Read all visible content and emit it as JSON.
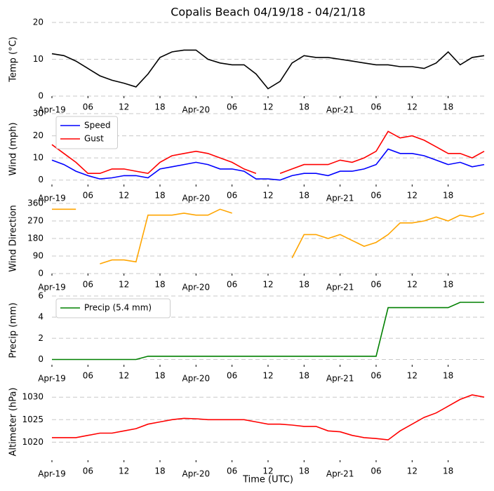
{
  "chart_data": [
    {
      "type": "line",
      "title": "Copalis Beach 04/19/18 - 04/21/18",
      "ylabel": "Temp (°C)",
      "color": "#000000",
      "x": [
        0,
        2,
        4,
        6,
        8,
        10,
        12,
        14,
        16,
        18,
        20,
        22,
        24,
        26,
        28,
        30,
        32,
        34,
        36,
        38,
        40,
        42,
        44,
        46,
        48,
        50,
        52,
        54,
        56,
        58,
        60,
        62,
        64,
        66,
        68,
        70,
        72
      ],
      "values": [
        11.5,
        11,
        9.5,
        7.5,
        5.5,
        4.3,
        3.5,
        2.5,
        6,
        10.5,
        12,
        12.5,
        12.5,
        10,
        9,
        8.5,
        8.5,
        6,
        2,
        4,
        9,
        11,
        10.5,
        10.5,
        10,
        9.5,
        9,
        8.5,
        8.5,
        8,
        8,
        7.5,
        9,
        12,
        8.5,
        10.5,
        11
      ],
      "xlim": [
        0,
        72
      ],
      "xticks": [
        {
          "value": 0,
          "label": "Apr-19"
        },
        {
          "value": 6,
          "label": "06"
        },
        {
          "value": 12,
          "label": "12"
        },
        {
          "value": 18,
          "label": "18"
        },
        {
          "value": 24,
          "label": "Apr-20"
        },
        {
          "value": 30,
          "label": "06"
        },
        {
          "value": 36,
          "label": "12"
        },
        {
          "value": 42,
          "label": "18"
        },
        {
          "value": 48,
          "label": "Apr-21"
        },
        {
          "value": 54,
          "label": "06"
        },
        {
          "value": 60,
          "label": "12"
        },
        {
          "value": 66,
          "label": "18"
        }
      ],
      "ylim": [
        0,
        20
      ],
      "yticks": [
        0,
        10,
        20
      ],
      "grid": true
    },
    {
      "type": "line",
      "ylabel": "Wind (mph)",
      "legend": "upper left",
      "x": [
        0,
        2,
        4,
        6,
        8,
        10,
        12,
        14,
        16,
        18,
        20,
        22,
        24,
        26,
        28,
        30,
        32,
        34,
        36,
        38,
        40,
        42,
        44,
        46,
        48,
        50,
        52,
        54,
        56,
        58,
        60,
        62,
        64,
        66,
        68,
        70,
        72
      ],
      "series": [
        {
          "name": "Speed",
          "color": "#0000ff",
          "values": [
            9,
            7,
            4,
            2,
            0.5,
            1,
            2,
            2,
            1,
            5,
            6,
            7,
            8,
            7,
            5,
            5,
            4,
            0.5,
            0.5,
            0,
            2,
            3,
            3,
            2,
            4,
            4,
            5,
            7,
            14,
            12,
            12,
            11,
            9,
            7,
            8,
            6,
            7
          ]
        },
        {
          "name": "Gust",
          "color": "#ff0000",
          "values": [
            16,
            12,
            8,
            3,
            3,
            5,
            5,
            4,
            3,
            8,
            11,
            12,
            13,
            12,
            10,
            8,
            5,
            3,
            null,
            3,
            5,
            7,
            7,
            7,
            9,
            8,
            10,
            13,
            22,
            19,
            20,
            18,
            15,
            12,
            12,
            10,
            13
          ]
        }
      ],
      "xlim": [
        0,
        72
      ],
      "xticks": [
        {
          "value": 0,
          "label": "Apr-19"
        },
        {
          "value": 6,
          "label": "06"
        },
        {
          "value": 12,
          "label": "12"
        },
        {
          "value": 18,
          "label": "18"
        },
        {
          "value": 24,
          "label": "Apr-20"
        },
        {
          "value": 30,
          "label": "06"
        },
        {
          "value": 36,
          "label": "12"
        },
        {
          "value": 42,
          "label": "18"
        },
        {
          "value": 48,
          "label": "Apr-21"
        },
        {
          "value": 54,
          "label": "06"
        },
        {
          "value": 60,
          "label": "12"
        },
        {
          "value": 66,
          "label": "18"
        }
      ],
      "ylim": [
        -2,
        30
      ],
      "yticks": [
        0,
        10,
        20,
        30
      ],
      "grid": true
    },
    {
      "type": "line",
      "ylabel": "Wind Direction",
      "color": "#ffa500",
      "x": [
        0,
        2,
        4,
        6,
        8,
        10,
        12,
        14,
        16,
        18,
        20,
        22,
        24,
        26,
        28,
        30,
        32,
        34,
        36,
        38,
        40,
        42,
        44,
        46,
        48,
        50,
        52,
        54,
        56,
        58,
        60,
        62,
        64,
        66,
        68,
        70,
        72
      ],
      "values": [
        330,
        330,
        330,
        null,
        50,
        70,
        70,
        60,
        300,
        300,
        300,
        310,
        300,
        300,
        330,
        310,
        null,
        null,
        null,
        null,
        80,
        200,
        200,
        180,
        200,
        170,
        140,
        160,
        200,
        260,
        260,
        270,
        290,
        270,
        300,
        290,
        310
      ],
      "xlim": [
        0,
        72
      ],
      "xticks": [
        {
          "value": 0,
          "label": "Apr-19"
        },
        {
          "value": 6,
          "label": "06"
        },
        {
          "value": 12,
          "label": "12"
        },
        {
          "value": 18,
          "label": "18"
        },
        {
          "value": 24,
          "label": "Apr-20"
        },
        {
          "value": 30,
          "label": "06"
        },
        {
          "value": 36,
          "label": "12"
        },
        {
          "value": 42,
          "label": "18"
        },
        {
          "value": 48,
          "label": "Apr-21"
        },
        {
          "value": 54,
          "label": "06"
        },
        {
          "value": 60,
          "label": "12"
        },
        {
          "value": 66,
          "label": "18"
        }
      ],
      "ylim": [
        0,
        360
      ],
      "yticks": [
        0,
        90,
        180,
        270,
        360
      ],
      "grid": true
    },
    {
      "type": "line",
      "ylabel": "Precip (mm)",
      "legend": "upper left",
      "x": [
        0,
        2,
        4,
        6,
        8,
        10,
        12,
        14,
        16,
        18,
        20,
        22,
        24,
        26,
        28,
        30,
        32,
        34,
        36,
        38,
        40,
        42,
        44,
        46,
        48,
        50,
        52,
        54,
        56,
        58,
        60,
        62,
        64,
        66,
        68,
        70,
        72
      ],
      "series": [
        {
          "name": "Precip (5.4 mm)",
          "color": "#008000",
          "values": [
            0,
            0,
            0,
            0,
            0,
            0,
            0,
            0,
            0.3,
            0.3,
            0.3,
            0.3,
            0.3,
            0.3,
            0.3,
            0.3,
            0.3,
            0.3,
            0.3,
            0.3,
            0.3,
            0.3,
            0.3,
            0.3,
            0.3,
            0.3,
            0.3,
            0.3,
            4.9,
            4.9,
            4.9,
            4.9,
            4.9,
            4.9,
            5.4,
            5.4,
            5.4
          ]
        }
      ],
      "xlim": [
        0,
        72
      ],
      "xticks": [
        {
          "value": 0,
          "label": "Apr-19"
        },
        {
          "value": 6,
          "label": "06"
        },
        {
          "value": 12,
          "label": "12"
        },
        {
          "value": 18,
          "label": "18"
        },
        {
          "value": 24,
          "label": "Apr-20"
        },
        {
          "value": 30,
          "label": "06"
        },
        {
          "value": 36,
          "label": "12"
        },
        {
          "value": 42,
          "label": "18"
        },
        {
          "value": 48,
          "label": "Apr-21"
        },
        {
          "value": 54,
          "label": "06"
        },
        {
          "value": 60,
          "label": "12"
        },
        {
          "value": 66,
          "label": "18"
        }
      ],
      "ylim": [
        -0.5,
        6
      ],
      "yticks": [
        0,
        2,
        4,
        6
      ],
      "grid": true
    },
    {
      "type": "line",
      "ylabel": "Altimeter (hPa)",
      "xlabel": "Time (UTC)",
      "color": "#ff0000",
      "x": [
        0,
        2,
        4,
        6,
        8,
        10,
        12,
        14,
        16,
        18,
        20,
        22,
        24,
        26,
        28,
        30,
        32,
        34,
        36,
        38,
        40,
        42,
        44,
        46,
        48,
        50,
        52,
        54,
        56,
        58,
        60,
        62,
        64,
        66,
        68,
        70,
        72
      ],
      "values": [
        1021,
        1021,
        1021,
        1021.5,
        1022,
        1022,
        1022.5,
        1023,
        1024,
        1024.5,
        1025,
        1025.3,
        1025.2,
        1025,
        1025,
        1025,
        1025,
        1024.5,
        1024,
        1024,
        1023.8,
        1023.5,
        1023.5,
        1022.5,
        1022.3,
        1021.5,
        1021,
        1020.8,
        1020.5,
        1022.5,
        1024,
        1025.5,
        1026.5,
        1028,
        1029.5,
        1030.5,
        1030
      ],
      "xlim": [
        0,
        72
      ],
      "xticks": [
        {
          "value": 0,
          "label": "Apr-19"
        },
        {
          "value": 6,
          "label": "06"
        },
        {
          "value": 12,
          "label": "12"
        },
        {
          "value": 18,
          "label": "18"
        },
        {
          "value": 24,
          "label": "Apr-20"
        },
        {
          "value": 30,
          "label": "06"
        },
        {
          "value": 36,
          "label": "12"
        },
        {
          "value": 42,
          "label": "18"
        },
        {
          "value": 48,
          "label": "Apr-21"
        },
        {
          "value": 54,
          "label": "06"
        },
        {
          "value": 60,
          "label": "12"
        },
        {
          "value": 66,
          "label": "18"
        }
      ],
      "ylim": [
        1016,
        1033
      ],
      "yticks": [
        1020,
        1025,
        1030
      ],
      "grid": true
    }
  ]
}
